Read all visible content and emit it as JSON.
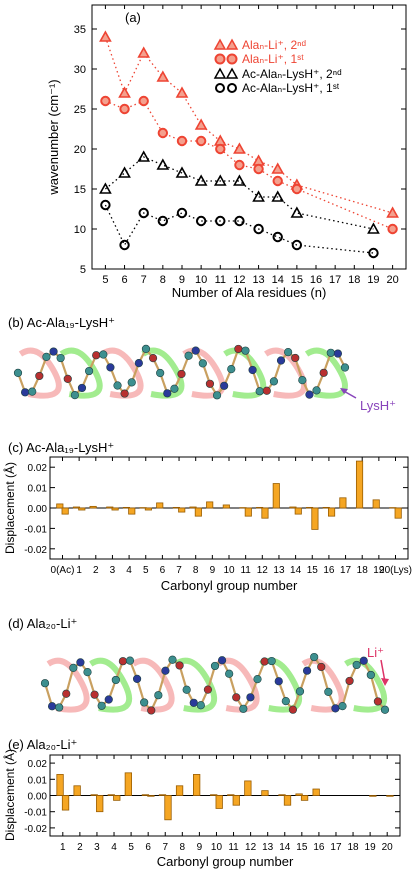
{
  "colors": {
    "red": "#ee4433",
    "red_fill": "#f4a08e",
    "orange": "#f5a623",
    "orange_stroke": "#9a5d00",
    "green": "#55dd33",
    "pink": "#f08080",
    "purple": "#8844bb",
    "mol_c": "#3d8f8f",
    "mol_n": "#2a3a9a",
    "mol_o": "#b83030"
  },
  "panel_a": {
    "label": "(a)",
    "ylabel": "wavenumber (cm⁻¹)",
    "xlabel": "Number of Ala residues (n)",
    "legend": [
      {
        "text": "Alaₙ-Li⁺, 2ⁿᵈ"
      },
      {
        "text": "Alaₙ-Li⁺, 1ˢᵗ"
      },
      {
        "text": "Ac-Alaₙ-LysH⁺, 2ⁿᵈ"
      },
      {
        "text": "Ac-Alaₙ-LysH⁺, 1ˢᵗ"
      }
    ]
  },
  "panel_b": {
    "label": "(b) Ac-Ala₁₉-LysH⁺",
    "annotation": "LysH⁺"
  },
  "panel_c": {
    "label": "(c) Ac-Ala₁₉-LysH⁺",
    "ylabel": "Displacement (Å)",
    "xlabel": "Carbonyl group number"
  },
  "panel_d": {
    "label": "(d) Ala₂₀-Li⁺",
    "annotation": "Li⁺"
  },
  "panel_e": {
    "label": "(e) Ala₂₀-Li⁺",
    "ylabel": "Displacement (Å)",
    "xlabel": "Carbonyl group number"
  },
  "chart_data": [
    {
      "type": "scatter",
      "panel": "a",
      "xlabel": "Number of Ala residues (n)",
      "ylabel": "wavenumber (cm⁻¹)",
      "xlim": [
        4.3,
        20.7
      ],
      "ylim": [
        5,
        38
      ],
      "x_ticks": [
        5,
        6,
        7,
        8,
        9,
        10,
        11,
        12,
        13,
        14,
        15,
        16,
        17,
        18,
        19,
        20
      ],
      "y_ticks": [
        5,
        10,
        15,
        20,
        25,
        30,
        35
      ],
      "series": [
        {
          "name": "Alaₙ-Li⁺, 2ⁿᵈ",
          "marker": "triangle-filled",
          "x": [
            5,
            6,
            7,
            8,
            9,
            10,
            11,
            12,
            13,
            14,
            15,
            20
          ],
          "y": [
            34,
            27,
            32,
            29,
            27,
            23,
            21,
            20,
            18.5,
            17.5,
            15.5,
            12
          ]
        },
        {
          "name": "Alaₙ-Li⁺, 1ˢᵗ",
          "marker": "circle-filled",
          "x": [
            5,
            6,
            7,
            8,
            9,
            10,
            11,
            12,
            13,
            14,
            15,
            20
          ],
          "y": [
            26,
            25,
            26,
            22,
            21,
            21,
            20,
            18,
            17.5,
            16,
            15,
            10
          ]
        },
        {
          "name": "Ac-Alaₙ-LysH⁺, 2ⁿᵈ",
          "marker": "triangle-open",
          "x": [
            5,
            6,
            7,
            8,
            9,
            10,
            11,
            12,
            13,
            14,
            15,
            19
          ],
          "y": [
            15,
            17,
            19,
            18,
            17,
            16,
            16,
            16,
            14,
            14,
            12,
            10
          ]
        },
        {
          "name": "Ac-Alaₙ-LysH⁺, 1ˢᵗ",
          "marker": "circle-open",
          "x": [
            5,
            6,
            7,
            8,
            9,
            10,
            11,
            12,
            13,
            14,
            15,
            19
          ],
          "y": [
            13,
            8,
            12,
            11,
            12,
            11,
            11,
            11,
            10,
            9,
            8,
            7
          ]
        }
      ]
    },
    {
      "type": "bar",
      "panel": "c",
      "xlabel": "Carbonyl group number",
      "ylabel": "Displacement (Å)",
      "categories": [
        "0(Ac)",
        "1",
        "2",
        "3",
        "4",
        "5",
        "6",
        "7",
        "8",
        "9",
        "10",
        "11",
        "12",
        "13",
        "14",
        "15",
        "16",
        "17",
        "18",
        "19",
        "20(Lys)"
      ],
      "ylim": [
        -0.025,
        0.025
      ],
      "y_ticks": [
        -0.02,
        -0.01,
        0.0,
        0.01,
        0.02
      ],
      "y_ticklabels": [
        "-0.02",
        "-0.01",
        "0.00",
        "0.01",
        "0.02"
      ],
      "series": [
        {
          "values": [
            0.002,
            0.0005,
            0.0008,
            0.0005,
            0.0003,
            0.0002,
            0.0025,
            0.0003,
            0.0005,
            0.003,
            0.0015,
            0.0002,
            0.0003,
            0.012,
            0.0005,
            0.0003,
            0.0003,
            0.005,
            0.023,
            0.004,
            0.0002
          ]
        },
        {
          "values": [
            -0.003,
            -0.001,
            0,
            -0.001,
            -0.003,
            -0.001,
            0,
            -0.002,
            -0.004,
            0,
            0,
            -0.004,
            -0.005,
            0,
            -0.003,
            -0.0105,
            -0.004,
            0,
            0,
            0,
            -0.005
          ]
        }
      ]
    },
    {
      "type": "bar",
      "panel": "e",
      "xlabel": "Carbonyl group number",
      "ylabel": "Displacement (Å)",
      "categories": [
        "1",
        "2",
        "3",
        "4",
        "5",
        "6",
        "7",
        "8",
        "9",
        "10",
        "11",
        "12",
        "13",
        "14",
        "15",
        "16",
        "17",
        "18",
        "19",
        "20"
      ],
      "ylim": [
        -0.025,
        0.025
      ],
      "y_ticks": [
        -0.02,
        -0.01,
        0.0,
        0.01,
        0.02
      ],
      "y_ticklabels": [
        "-0.02",
        "-0.01",
        "0.00",
        "0.01",
        "0.02"
      ],
      "series": [
        {
          "values": [
            0.013,
            0.006,
            0.0005,
            0.0005,
            0.014,
            0.0005,
            0.0005,
            0.006,
            0.013,
            0.0005,
            0.0005,
            0.009,
            0.003,
            0.0005,
            0.001,
            0.004,
            0,
            0,
            0,
            0
          ]
        },
        {
          "values": [
            -0.009,
            0,
            -0.01,
            -0.003,
            0,
            -0.0005,
            -0.015,
            0,
            0,
            -0.008,
            -0.006,
            0,
            0,
            -0.006,
            -0.003,
            0,
            0,
            0,
            -0.0005,
            -0.0005
          ]
        }
      ]
    }
  ]
}
